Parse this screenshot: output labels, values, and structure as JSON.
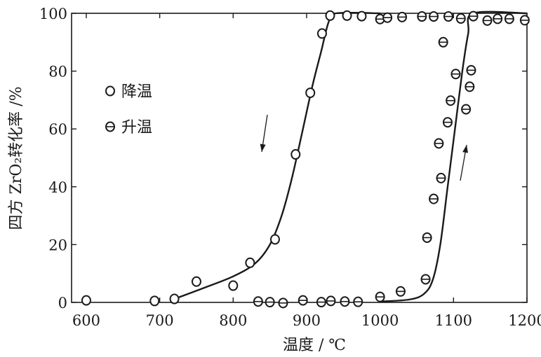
{
  "chart_data": {
    "type": "scatter",
    "xlabel": "温度 / ℃",
    "ylabel": "四方 ZrO₂转化率 /%",
    "xlim": [
      580,
      1200
    ],
    "ylim": [
      0,
      100
    ],
    "xticks": [
      600,
      700,
      800,
      900,
      1000,
      1100,
      1200
    ],
    "yticks": [
      0,
      20,
      40,
      60,
      80,
      100
    ],
    "grid": false,
    "legend_position": "upper-left",
    "series": [
      {
        "name": "降温",
        "marker": "open-circle",
        "points": [
          [
            600,
            0.7
          ],
          [
            693,
            0.5
          ],
          [
            720,
            1.2
          ],
          [
            750,
            7.2
          ],
          [
            800,
            5.8
          ],
          [
            823,
            13.7
          ],
          [
            857,
            21.8
          ],
          [
            885,
            51.2
          ],
          [
            905,
            72.5
          ],
          [
            921,
            93
          ],
          [
            932,
            99.2
          ],
          [
            955,
            99.2
          ],
          [
            975,
            99
          ]
        ],
        "curve": [
          [
            718,
            1
          ],
          [
            760,
            5
          ],
          [
            800,
            9
          ],
          [
            830,
            13.5
          ],
          [
            850,
            20
          ],
          [
            866,
            30
          ],
          [
            880,
            43
          ],
          [
            895,
            60
          ],
          [
            908,
            75
          ],
          [
            920,
            87
          ],
          [
            930,
            97
          ],
          [
            940,
            100
          ],
          [
            1000,
            100
          ]
        ]
      },
      {
        "name": "升温",
        "marker": "circle-with-bar",
        "points": [
          [
            834,
            0.3
          ],
          [
            850,
            0.1
          ],
          [
            868,
            -0.2
          ],
          [
            895,
            0.7
          ],
          [
            920,
            0.1
          ],
          [
            933,
            0.5
          ],
          [
            952,
            0.3
          ],
          [
            970,
            0.2
          ],
          [
            1000,
            1.9
          ],
          [
            1028,
            3.8
          ],
          [
            1062,
            8
          ],
          [
            1064,
            22.4
          ],
          [
            1073,
            35.8
          ],
          [
            1080,
            55
          ],
          [
            1083,
            43
          ],
          [
            1086,
            90
          ],
          [
            1092,
            62.3
          ],
          [
            1096,
            69.8
          ],
          [
            1103,
            79
          ],
          [
            1117,
            66.8
          ],
          [
            1122,
            74.6
          ],
          [
            1124,
            80.3
          ],
          [
            1127,
            99
          ],
          [
            1000,
            98
          ],
          [
            1010,
            98.5
          ],
          [
            1030,
            98.7
          ],
          [
            1057,
            98.9
          ],
          [
            1073,
            98.9
          ],
          [
            1093,
            98.9
          ],
          [
            1110,
            98.2
          ],
          [
            1146,
            97.5
          ],
          [
            1160,
            98.1
          ],
          [
            1176,
            98.1
          ],
          [
            1197,
            97.6
          ]
        ],
        "curve": [
          [
            1000,
            0.3
          ],
          [
            1040,
            1
          ],
          [
            1060,
            3
          ],
          [
            1072,
            8
          ],
          [
            1082,
            20
          ],
          [
            1092,
            40
          ],
          [
            1102,
            60
          ],
          [
            1112,
            80
          ],
          [
            1120,
            93
          ],
          [
            1127,
            100
          ],
          [
            1200,
            100
          ]
        ]
      }
    ],
    "arrows": [
      {
        "direction": "down",
        "series": "降温"
      },
      {
        "direction": "up",
        "series": "升温"
      }
    ]
  }
}
